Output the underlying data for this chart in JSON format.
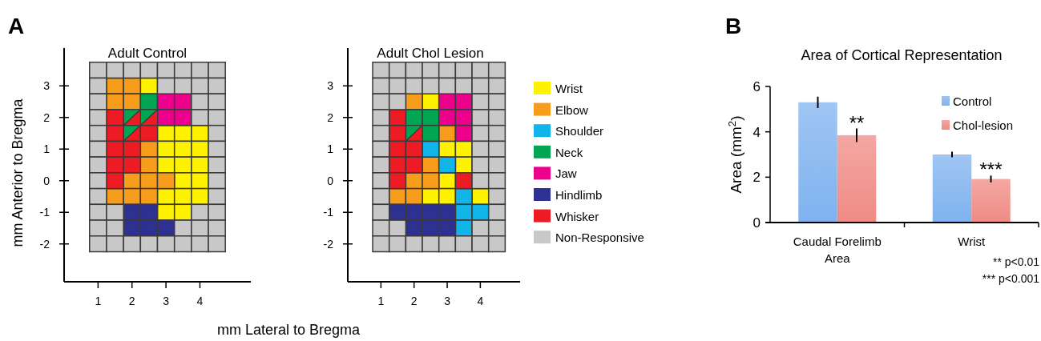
{
  "chart_data": [
    {
      "type": "scatter",
      "title": "Adult Control",
      "xlabel": "mm Lateral to Bregma",
      "ylabel": "mm Anterior to Bregma",
      "annotations": [
        "A"
      ],
      "xlim": [
        0,
        5.5
      ],
      "ylim": [
        -3.2,
        4.2
      ],
      "xticks": [
        1,
        2,
        3,
        4
      ],
      "yticks": [
        -2,
        -1,
        0,
        1,
        2,
        3
      ],
      "marker": "square",
      "series": [
        {
          "color": "#fff200",
          "x": [
            2.5,
            3,
            3.5,
            4,
            3,
            3.5,
            4,
            3,
            3.5,
            4,
            3.5,
            4,
            3,
            3.5,
            4,
            3,
            3.5
          ],
          "values": [
            3,
            1.5,
            1.5,
            1.5,
            1,
            1,
            1,
            0.5,
            0.5,
            0.5,
            0,
            0,
            -0.5,
            -0.5,
            -0.5,
            -1,
            -1
          ]
        },
        {
          "color": "#f89c1c",
          "x": [
            1.5,
            2,
            1.5,
            2,
            2.5,
            2.5,
            2,
            2.5,
            3,
            1.5,
            2,
            2.5
          ],
          "values": [
            3,
            3,
            2.5,
            2.5,
            1,
            0.5,
            0,
            0,
            0,
            -0.5,
            -0.5,
            -0.5
          ]
        },
        {
          "color": "#00a651",
          "x": [
            2.5,
            2,
            2.5,
            2
          ],
          "values": [
            2.5,
            2,
            2,
            1.5
          ]
        },
        {
          "color": "#ec008c",
          "x": [
            3,
            3.5,
            3,
            3.5
          ],
          "values": [
            2.5,
            2.5,
            2,
            2
          ]
        },
        {
          "color": "#2e3192",
          "x": [
            2,
            2.5,
            2,
            2.5,
            3
          ],
          "values": [
            -1,
            -1,
            -1.5,
            -1.5,
            -1.5
          ]
        },
        {
          "color": "#ed1c24",
          "x": [
            1.5,
            2,
            2.5,
            1.5,
            2,
            2.5,
            1.5,
            2,
            1.5,
            2,
            1.5
          ],
          "values": [
            2,
            2,
            2,
            1.5,
            1.5,
            1.5,
            1,
            1,
            0.5,
            0.5,
            0
          ]
        },
        {
          "color": "#c8c8c8",
          "x": [
            1,
            1.5,
            2,
            2.5,
            3,
            3.5,
            4,
            4.5,
            1,
            3,
            3.5,
            4,
            4.5,
            1,
            4,
            4.5,
            1,
            4,
            4.5,
            1,
            4.5,
            1,
            4.5,
            1,
            4.5,
            1,
            4.5,
            1,
            4.5,
            1,
            1.5,
            4,
            4.5,
            1,
            1.5,
            3.5,
            4,
            4.5,
            1,
            1.5,
            2,
            2.5,
            3,
            3.5,
            4,
            4.5
          ],
          "values": [
            3.5,
            3.5,
            3.5,
            3.5,
            3.5,
            3.5,
            3.5,
            3.5,
            3,
            3,
            3,
            3,
            3,
            2.5,
            2.5,
            2.5,
            2,
            2,
            2,
            1.5,
            1.5,
            1,
            1,
            0.5,
            0.5,
            0,
            0,
            -0.5,
            -0.5,
            -1,
            -1,
            -1,
            -1,
            -1.5,
            -1.5,
            -1.5,
            -1.5,
            -1.5,
            -2,
            -2,
            -2,
            -2,
            -2,
            -2,
            -2,
            -2
          ]
        }
      ]
    },
    {
      "type": "scatter",
      "title": "Adult Chol Lesion",
      "xlim": [
        0,
        5.2
      ],
      "ylim": [
        -3.2,
        4.2
      ],
      "xticks": [
        1,
        2,
        3,
        4
      ],
      "yticks": [
        -2,
        -1,
        0,
        1,
        2,
        3
      ],
      "marker": "square",
      "legend": "right",
      "series": [
        {
          "name": "Wrist",
          "color": "#fff200",
          "x": [
            2.5,
            3,
            3.5,
            3.5,
            3,
            2.5,
            3,
            4
          ],
          "values": [
            2.5,
            1,
            1,
            0.5,
            0,
            -0.5,
            -0.5,
            -0.5
          ]
        },
        {
          "name": "Elbow",
          "color": "#f89c1c",
          "x": [
            2,
            3,
            2.5,
            2,
            2.5,
            1.5,
            2
          ],
          "values": [
            2.5,
            1.5,
            0.5,
            0,
            0,
            -0.5,
            -0.5
          ]
        },
        {
          "name": "Shoulder",
          "color": "#11b5e9",
          "x": [
            2.5,
            3,
            3.5,
            3.5,
            4,
            3.5
          ],
          "values": [
            1,
            0.5,
            -0.5,
            -1,
            -1,
            -1.5
          ]
        },
        {
          "name": "Neck",
          "color": "#00a651",
          "x": [
            2,
            2.5,
            2,
            2.5
          ],
          "values": [
            2,
            2,
            1.5,
            1.5
          ]
        },
        {
          "name": "Jaw",
          "color": "#ec008c",
          "x": [
            3,
            3.5,
            3,
            3.5,
            3.5
          ],
          "values": [
            2.5,
            2.5,
            2,
            2,
            1.5
          ]
        },
        {
          "name": "Hindlimb",
          "color": "#2e3192",
          "x": [
            1.5,
            2,
            2.5,
            3,
            2,
            2.5,
            3
          ],
          "values": [
            -1,
            -1,
            -1,
            -1,
            -1.5,
            -1.5,
            -1.5
          ]
        },
        {
          "name": "Whisker",
          "color": "#ed1c24",
          "x": [
            1.5,
            1.5,
            2,
            1.5,
            2,
            1.5,
            2,
            1.5,
            3.5
          ],
          "values": [
            2,
            1.5,
            1.5,
            1,
            1,
            0.5,
            0.5,
            0,
            0
          ]
        },
        {
          "name": "Non-Responsive",
          "color": "#c8c8c8",
          "x": [
            1,
            1.5,
            2,
            2.5,
            3,
            3.5,
            4,
            4.5,
            1,
            1.5,
            2,
            2.5,
            3,
            3.5,
            4,
            4.5,
            1,
            1.5,
            4,
            4.5,
            1,
            4,
            4.5,
            1,
            4,
            4.5,
            1,
            4,
            4.5,
            1,
            4,
            4.5,
            1,
            4,
            4.5,
            1,
            4.5,
            1,
            4.5,
            1,
            1.5,
            4,
            4.5,
            1,
            1.5,
            2,
            2.5,
            3,
            3.5,
            4,
            4.5
          ],
          "values": [
            3.5,
            3.5,
            3.5,
            3.5,
            3.5,
            3.5,
            3.5,
            3.5,
            3,
            3,
            3,
            3,
            3,
            3,
            3,
            3,
            2.5,
            2.5,
            2.5,
            2.5,
            2,
            2,
            2,
            1.5,
            1.5,
            1.5,
            1,
            1,
            1,
            0.5,
            0.5,
            0.5,
            0,
            0,
            0,
            -0.5,
            -0.5,
            -1,
            -1,
            -1.5,
            -1.5,
            -1.5,
            -1.5,
            -2,
            -2,
            -2,
            -2,
            -2,
            -2,
            -2,
            -2
          ]
        }
      ]
    },
    {
      "type": "bar",
      "title": "Area of Cortical Representation",
      "ylabel": "Area (mm$^{2}$)",
      "categories": [
        "Caudal Forelimb Area",
        "Wrist"
      ],
      "series": [
        {
          "name": "Control",
          "color": "#7fb2ef",
          "values": [
            5.3,
            3.0
          ],
          "errors": [
            0.25,
            0.12
          ]
        },
        {
          "name": "Chol-lesion",
          "color": "#f08a84",
          "values": [
            3.85,
            1.92
          ],
          "errors": [
            0.3,
            0.15
          ]
        }
      ],
      "ylim": [
        0,
        6
      ],
      "yticks": [
        0,
        2,
        4,
        6
      ],
      "legend": "top right",
      "annotations": [
        "B",
        {
          "text": "**",
          "x": "Caudal Forelimb Area",
          "y": 4.6
        },
        {
          "text": "***",
          "x": "Wrist",
          "y": 2.55
        },
        "** p<0.01",
        "*** p<0.001"
      ]
    }
  ]
}
